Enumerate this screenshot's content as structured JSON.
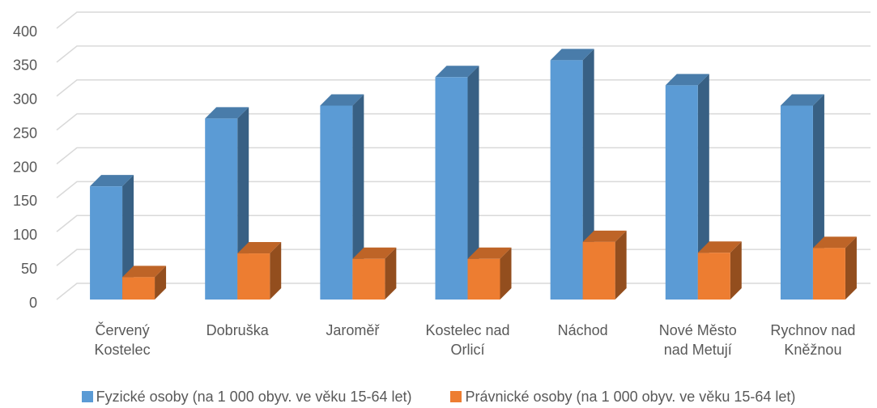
{
  "chart_data": {
    "type": "bar3d",
    "categories": [
      "Červený Kostelec",
      "Dobruška",
      "Jaroměř",
      "Kostelec nad Orlicí",
      "Náchod",
      "Nové Město nad Metují",
      "Rychnov nad Kněžnou"
    ],
    "series": [
      {
        "name": "Fyzické osoby (na 1 000 obyv. ve věku 15-64 let)",
        "color": "#5b9bd5",
        "values": [
          167,
          267,
          286,
          328,
          353,
          316,
          286
        ]
      },
      {
        "name": "Právnické osoby (na 1 000 obyv. ve věku 15-64 let)",
        "color": "#ed7d31",
        "values": [
          33,
          68,
          60,
          60,
          85,
          69,
          76
        ]
      }
    ],
    "ylim": [
      0,
      400
    ],
    "yticks": [
      0,
      50,
      100,
      150,
      200,
      250,
      300,
      350,
      400
    ],
    "grid": true
  }
}
